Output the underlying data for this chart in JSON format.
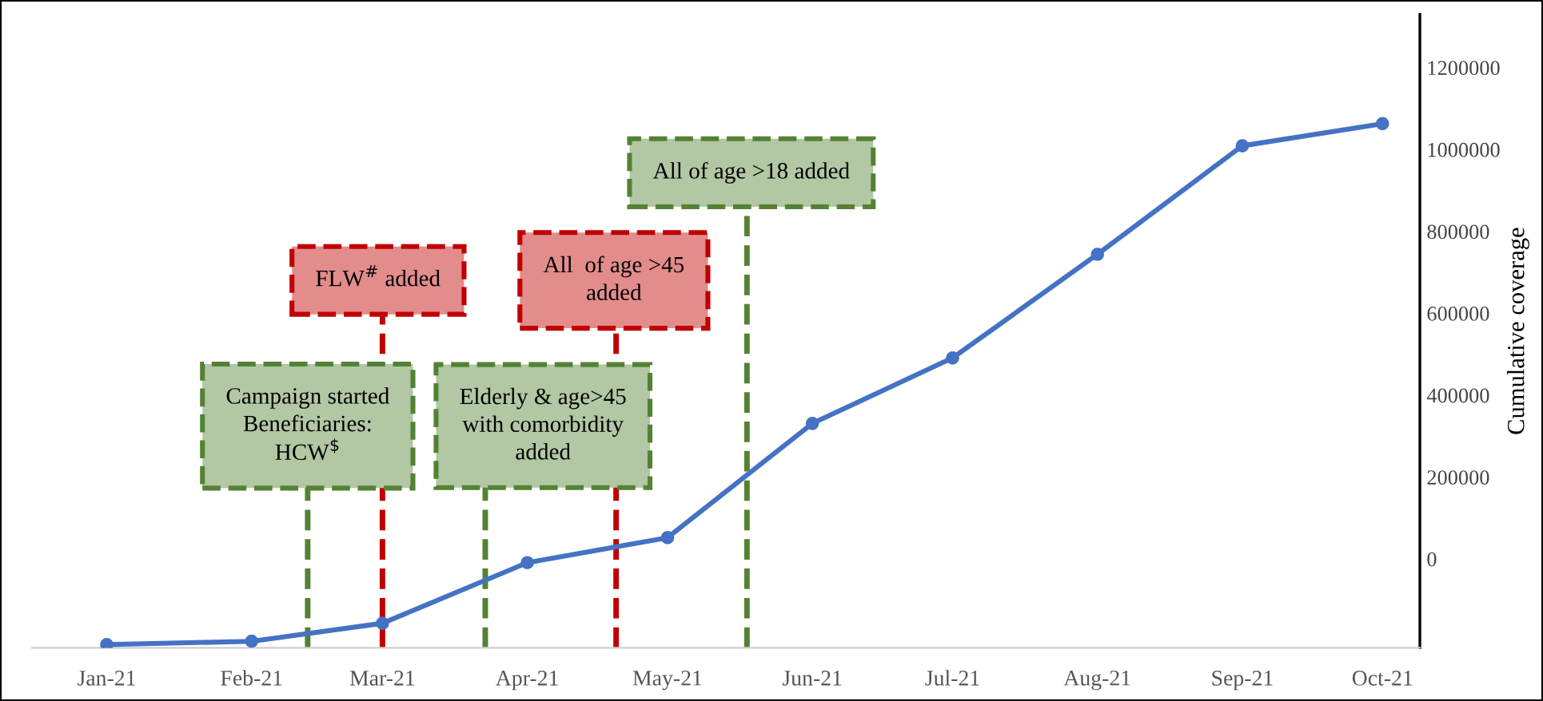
{
  "chart_data": {
    "type": "line",
    "ylabel": "Cumulative coverage",
    "x": [
      "2021-01",
      "2021-02",
      "2021-03",
      "2021-04",
      "2021-05",
      "2021-06",
      "2021-07",
      "2021-08",
      "2021-09",
      "2021-10"
    ],
    "series": [
      {
        "color": "#4472c4",
        "values": [
          -209000,
          -201000,
          -157000,
          -9000,
          52000,
          331000,
          491000,
          744000,
          1009000,
          1063000
        ]
      }
    ],
    "marker": "circle",
    "line_style": "solid",
    "grid": false,
    "legend": false,
    "xlim": [
      "2020-12-16",
      "2021-10-09"
    ],
    "xticks": [
      {
        "value": "2021-01",
        "label": "Jan-21"
      },
      {
        "value": "2021-02",
        "label": "Feb-21"
      },
      {
        "value": "2021-03",
        "label": "Mar-21"
      },
      {
        "value": "2021-04",
        "label": "Apr-21"
      },
      {
        "value": "2021-05",
        "label": "May-21"
      },
      {
        "value": "2021-06",
        "label": "Jun-21"
      },
      {
        "value": "2021-07",
        "label": "Jul-21"
      },
      {
        "value": "2021-08",
        "label": "Aug-21"
      },
      {
        "value": "2021-09",
        "label": "Sep-21"
      },
      {
        "value": "2021-10",
        "label": "Oct-21"
      }
    ],
    "ylim": [
      -217000,
      1330000
    ],
    "yticks": [
      0,
      200000,
      400000,
      600000,
      800000,
      1000000,
      1200000
    ],
    "ref_lines": [
      {
        "axis": "x",
        "value": "2021-02-13",
        "label": "Campaign started\nBeneficiaries:\nHCW$^{$}$",
        "color": "#548235",
        "line_style": "dashed"
      },
      {
        "axis": "x",
        "value": "2021-03-01",
        "label": "FLW$^{#}$ added",
        "color": "#c00000",
        "line_style": "dashed"
      },
      {
        "axis": "x",
        "value": "2021-03-23",
        "label": "Elderly & age>45\nwith comorbidity\nadded",
        "color": "#548235",
        "line_style": "dashed"
      },
      {
        "axis": "x",
        "value": "2021-04-20",
        "label": "All  of age >45\nadded",
        "color": "#c00000",
        "line_style": "dashed"
      },
      {
        "axis": "x",
        "value": "2021-05-18",
        "label": "All of age >18 added",
        "color": "#548235",
        "line_style": "dashed"
      }
    ]
  }
}
